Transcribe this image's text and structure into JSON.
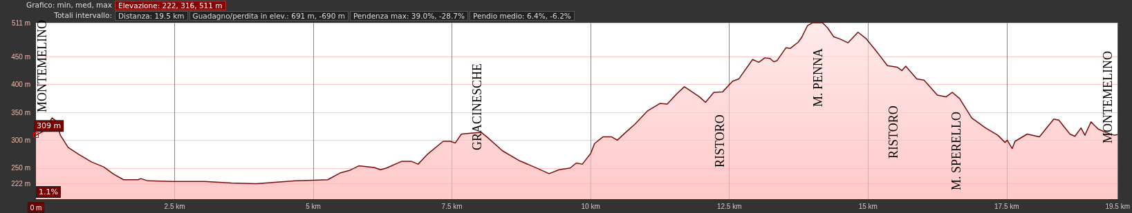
{
  "chart_data": {
    "type": "area",
    "grid": true,
    "x": [
      0,
      0.13,
      0.29,
      0.36,
      0.44,
      0.58,
      0.78,
      1.0,
      1.22,
      1.4,
      1.58,
      1.84,
      1.89,
      2.02,
      2.46,
      3.04,
      3.53,
      3.97,
      4.68,
      5.0,
      5.26,
      5.48,
      5.66,
      5.82,
      6.1,
      6.21,
      6.32,
      6.59,
      6.77,
      6.89,
      7.05,
      7.34,
      7.47,
      7.56,
      7.67,
      7.87,
      8.03,
      8.14,
      8.41,
      8.72,
      8.98,
      9.25,
      9.43,
      9.63,
      9.74,
      9.85,
      10.0,
      10.07,
      10.22,
      10.38,
      10.48,
      10.63,
      10.8,
      11.03,
      11.25,
      11.38,
      11.56,
      11.69,
      11.96,
      12.07,
      12.22,
      12.38,
      12.56,
      12.67,
      12.92,
      13.03,
      13.14,
      13.23,
      13.3,
      13.36,
      13.52,
      13.6,
      13.74,
      13.8,
      13.91,
      14.0,
      14.18,
      14.27,
      14.38,
      14.49,
      14.64,
      14.82,
      14.97,
      15.15,
      15.35,
      15.53,
      15.61,
      15.68,
      15.88,
      16.01,
      16.25,
      16.41,
      16.52,
      16.65,
      16.87,
      17.12,
      17.34,
      17.47,
      17.51,
      17.6,
      17.65,
      17.87,
      18.09,
      18.35,
      18.44,
      18.64,
      18.73,
      18.84,
      18.91,
      19.02,
      19.15,
      19.29,
      19.44,
      19.5
    ],
    "series": [
      {
        "color": "#7a0a0a",
        "values": [
          309,
          316,
          340,
          335,
          309,
          287,
          274,
          261,
          252,
          239,
          229,
          229,
          231,
          227,
          226,
          226,
          223,
          222,
          227,
          228,
          229,
          241,
          246,
          254,
          251,
          247,
          250,
          262,
          262,
          257,
          274,
          298,
          298,
          295,
          311,
          313,
          314,
          305,
          281,
          263,
          252,
          240,
          247,
          250,
          259,
          257,
          276,
          294,
          306,
          306,
          300,
          314,
          329,
          353,
          366,
          365,
          384,
          396,
          378,
          368,
          386,
          387,
          406,
          410,
          445,
          440,
          448,
          447,
          441,
          443,
          466,
          465,
          476,
          484,
          506,
          511,
          511,
          502,
          486,
          482,
          475,
          494,
          482,
          460,
          434,
          431,
          425,
          433,
          410,
          408,
          381,
          378,
          386,
          375,
          340,
          322,
          309,
          296,
          300,
          285,
          298,
          311,
          306,
          338,
          336,
          311,
          307,
          322,
          309,
          333,
          320,
          314,
          309,
          310
        ]
      }
    ],
    "xlim": [
      0,
      19.5
    ],
    "xticks": [
      {
        "value": 0,
        "label": "0 m"
      },
      {
        "value": 2.5,
        "label": "2.5 km"
      },
      {
        "value": 5,
        "label": "5 km"
      },
      {
        "value": 7.5,
        "label": "7.5 km"
      },
      {
        "value": 10,
        "label": "10 km"
      },
      {
        "value": 12.5,
        "label": "12.5 km"
      },
      {
        "value": 15,
        "label": "15 km"
      },
      {
        "value": 17.5,
        "label": "17.5 km"
      },
      {
        "value": 19.5,
        "label": "19.5 km"
      }
    ],
    "ylim": [
      194,
      511
    ],
    "yticks": [
      {
        "value": 222,
        "label": "222 m"
      },
      {
        "value": 250,
        "label": "250 m"
      },
      {
        "value": 300,
        "label": "300 m"
      },
      {
        "value": 350,
        "label": "350 m"
      },
      {
        "value": 400,
        "label": "400 m"
      },
      {
        "value": 450,
        "label": "450 m"
      },
      {
        "value": 511,
        "label": "511 m"
      }
    ],
    "annotations": [
      "Grafico: min, med, max",
      "Elevazione: 222, 316, 511 m",
      "Totali intervallo:",
      "Distanza: 19.5 km",
      "Guadagno/perdita in elev.: 691 m, -690 m",
      "Pendenza max: 39.0%, -28.7%",
      "Pendio medio: 6.4%, -6.2%",
      "1.1%",
      {
        "text": "309 m",
        "x": 0,
        "y": 309
      },
      "MONTEMELINO",
      "GRACINESCHE",
      "RISTORO",
      "M. PENNA",
      "RISTORO",
      "M. SPERELLO",
      "MONTEMELINO"
    ]
  }
}
